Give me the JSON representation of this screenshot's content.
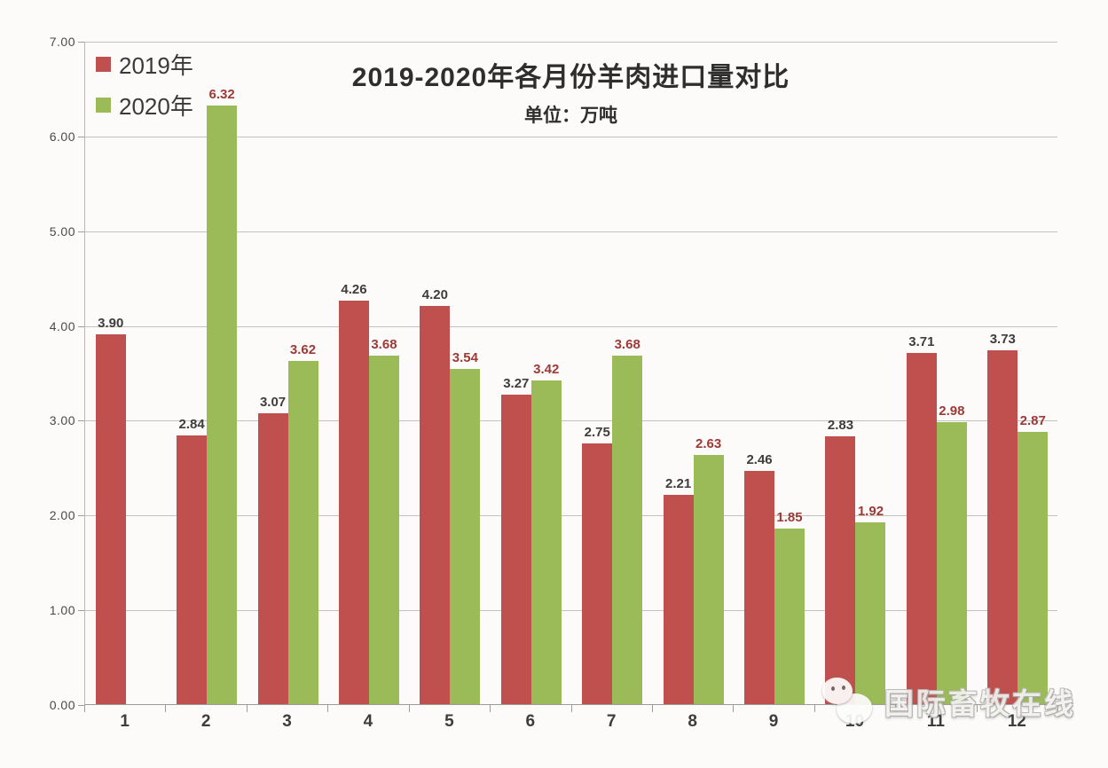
{
  "chart": {
    "title": "2019-2020年各月份羊肉进口量对比",
    "subtitle": "单位：万吨"
  },
  "chart_data": {
    "type": "bar",
    "title": "2019-2020年各月份羊肉进口量对比",
    "subtitle": "单位：万吨",
    "unit_label": "万吨",
    "xlabel": "",
    "ylabel": "",
    "categories": [
      "1",
      "2",
      "3",
      "4",
      "5",
      "6",
      "7",
      "8",
      "9",
      "10",
      "11",
      "12"
    ],
    "series": [
      {
        "name": "2019年",
        "color": "#c0504d",
        "label_color": "#3d3d3b",
        "values": [
          3.9,
          2.84,
          3.07,
          4.26,
          4.2,
          3.27,
          2.75,
          2.21,
          2.46,
          2.83,
          3.71,
          3.73
        ],
        "labels": [
          "3.90",
          "2.84",
          "3.07",
          "4.26",
          "4.20",
          "3.27",
          "2.75",
          "2.21",
          "2.46",
          "2.83",
          "3.71",
          "3.73"
        ]
      },
      {
        "name": "2020年",
        "color": "#9bbb59",
        "label_color": "#9c3a37",
        "values": [
          null,
          6.32,
          3.62,
          3.68,
          3.54,
          3.42,
          3.68,
          2.63,
          1.85,
          1.92,
          2.98,
          2.87
        ],
        "labels": [
          "",
          "6.32",
          "3.62",
          "3.68",
          "3.54",
          "3.42",
          "3.68",
          "2.63",
          "1.85",
          "1.92",
          "2.98",
          "2.87"
        ]
      }
    ],
    "ylim": [
      0,
      7
    ],
    "ytick_step": 1,
    "yticks": [
      "0.00",
      "1.00",
      "2.00",
      "3.00",
      "4.00",
      "5.00",
      "6.00",
      "7.00"
    ],
    "grid": true,
    "legend_position": "top-left",
    "legend": [
      {
        "label": "2019年",
        "color": "#c0504d"
      },
      {
        "label": "2020年",
        "color": "#9bbb59"
      }
    ]
  },
  "watermark": {
    "text": "国际畜牧在线",
    "logo": "sheep-mascot-icon"
  }
}
